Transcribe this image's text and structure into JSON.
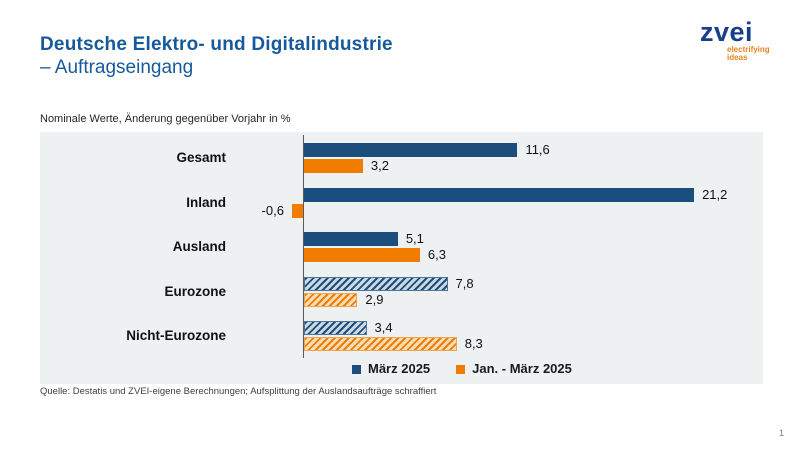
{
  "header": {
    "title_line1": "Deutsche Elektro- und Digitalindustrie",
    "title_line2": "– Auftragseingang",
    "logo_text": "zvei",
    "logo_tagline_line1": "electrifying",
    "logo_tagline_line2": "ideas"
  },
  "chart_data": {
    "type": "bar",
    "orientation": "horizontal",
    "subtitle": "Nominale Werte, Änderung gegenüber Vorjahr in %",
    "unit": "%",
    "categories": [
      "Gesamt",
      "Inland",
      "Ausland",
      "Eurozone",
      "Nicht-Eurozone"
    ],
    "series": [
      {
        "name": "März 2025",
        "color": "#1b4e7d",
        "values": [
          11.6,
          21.2,
          5.1,
          7.8,
          3.4
        ],
        "labels": [
          "11,6",
          "21,2",
          "5,1",
          "7,8",
          "3,4"
        ]
      },
      {
        "name": "Jan. - März 2025",
        "color": "#f07c00",
        "values": [
          3.2,
          -0.6,
          6.3,
          2.9,
          8.3
        ],
        "labels": [
          "3,2",
          "-0,6",
          "6,3",
          "2,9",
          "8,3"
        ]
      }
    ],
    "hatched_categories": [
      "Eurozone",
      "Nicht-Eurozone"
    ],
    "legend_position": "bottom",
    "zero_baseline": true,
    "gridlines": false,
    "axis_tick_labels_visible": false
  },
  "colors": {
    "title_blue": "#165a9c",
    "bar_blue": "#1b4e7d",
    "bar_orange": "#f07c00",
    "panel_background": "#edf1f2",
    "logo_blue": "#173f8c",
    "logo_orange": "#e8841c"
  },
  "footer": {
    "source": "Quelle: Destatis und ZVEI-eigene Berechnungen; Aufsplittung der Auslandsaufträge schraffiert",
    "page_number": "1"
  }
}
